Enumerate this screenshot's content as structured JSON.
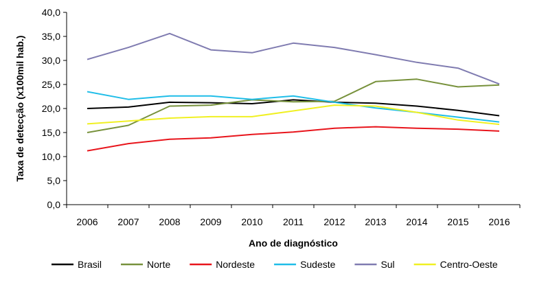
{
  "chart_data": {
    "type": "line",
    "xlabel": "Ano de diagnóstico",
    "ylabel": "Taxa de detecção (x100mil hab.)",
    "ylim": [
      0,
      40
    ],
    "yticks": [
      "0,0",
      "5,0",
      "10,0",
      "15,0",
      "20,0",
      "25,0",
      "30,0",
      "35,0",
      "40,0"
    ],
    "grid": false,
    "legend_position": "bottom",
    "categories": [
      "2006",
      "2007",
      "2008",
      "2009",
      "2010",
      "2011",
      "2012",
      "2013",
      "2014",
      "2015",
      "2016"
    ],
    "series": [
      {
        "name": "Brasil",
        "color": "#000000",
        "values": [
          20.0,
          20.3,
          21.3,
          21.2,
          21.0,
          21.8,
          21.3,
          21.1,
          20.5,
          19.6,
          18.5
        ]
      },
      {
        "name": "Norte",
        "color": "#77913b",
        "values": [
          15.0,
          16.5,
          20.5,
          20.7,
          21.8,
          21.4,
          21.5,
          25.6,
          26.1,
          24.5,
          24.9
        ]
      },
      {
        "name": "Nordeste",
        "color": "#e8141b",
        "values": [
          11.2,
          12.7,
          13.6,
          13.9,
          14.6,
          15.1,
          15.9,
          16.2,
          15.9,
          15.7,
          15.3
        ]
      },
      {
        "name": "Sudeste",
        "color": "#1fbde8",
        "values": [
          23.5,
          21.9,
          22.6,
          22.6,
          21.9,
          22.6,
          21.3,
          20.1,
          19.2,
          18.2,
          17.2
        ]
      },
      {
        "name": "Sul",
        "color": "#7f7bb0",
        "values": [
          30.2,
          32.7,
          35.6,
          32.2,
          31.6,
          33.6,
          32.7,
          31.2,
          29.6,
          28.4,
          25.1
        ]
      },
      {
        "name": "Centro-Oeste",
        "color": "#f0f021",
        "values": [
          16.8,
          17.4,
          18.0,
          18.3,
          18.3,
          19.5,
          20.7,
          20.5,
          19.2,
          17.6,
          16.7
        ]
      }
    ]
  }
}
